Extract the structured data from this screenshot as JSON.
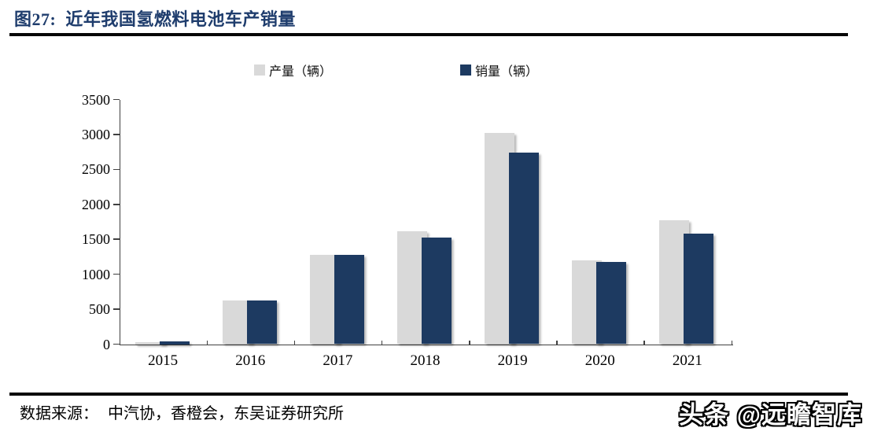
{
  "title": "图27:  近年我国氢燃料电池车产销量",
  "legend": [
    {
      "label": "产量（辆）",
      "color": "#d9d9d9"
    },
    {
      "label": "销量（辆）",
      "color": "#1d3a61"
    }
  ],
  "chart_data": {
    "type": "bar",
    "title": "近年我国氢燃料电池车产销量",
    "categories": [
      "2015",
      "2016",
      "2017",
      "2018",
      "2019",
      "2020",
      "2021"
    ],
    "series": [
      {
        "name": "产量（辆）",
        "color": "#d9d9d9",
        "values": [
          10,
          629,
          1275,
          1619,
          3018,
          1199,
          1777
        ]
      },
      {
        "name": "销量（辆）",
        "color": "#1d3a61",
        "values": [
          10,
          629,
          1275,
          1527,
          2737,
          1177,
          1586
        ]
      }
    ],
    "xlabel": "",
    "ylabel": "",
    "ylim": [
      0,
      3500
    ],
    "yticks": [
      0,
      500,
      1000,
      1500,
      2000,
      2500,
      3000,
      3500
    ],
    "grid": false,
    "legend_position": "top"
  },
  "footer": {
    "source_label": "数据来源：",
    "source_text": "中汽协，香橙会，东吴证券研究所"
  },
  "watermark": "头条 @远瞻智库",
  "colors": {
    "title": "#1f3d6d",
    "rule": "#070707",
    "axis": "#404040",
    "production_bar": "#d9d9d9",
    "sales_bar": "#1d3a61"
  }
}
